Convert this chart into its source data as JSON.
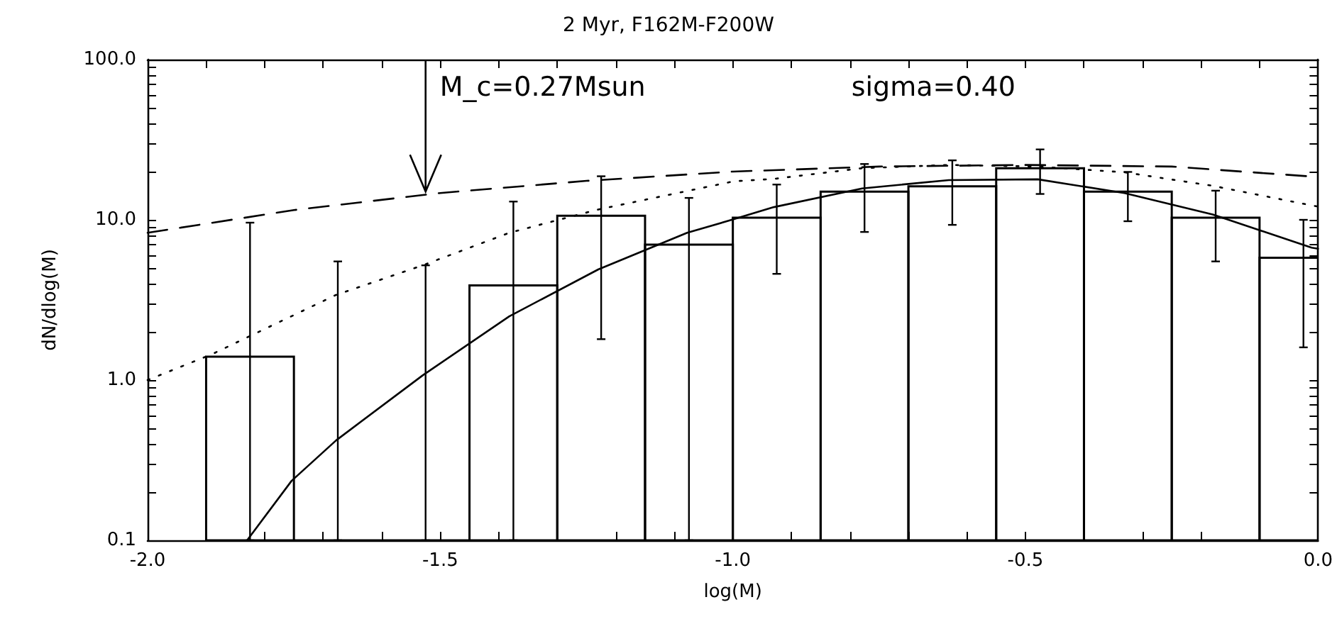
{
  "chart_data": {
    "type": "histogram",
    "title": "2 Myr, F162M-F200W",
    "xlabel": "log(M)",
    "ylabel": "dN/dlog(M)",
    "annotations": [
      {
        "text": "M_c=0.27Msun",
        "x": -1.525,
        "y": 15
      },
      "sigma=0.40"
    ],
    "bins": [
      -1.9,
      -1.75,
      -1.6,
      -1.45,
      -1.3,
      -1.15,
      -1.0,
      -0.85,
      -0.7,
      -0.55,
      -0.4,
      -0.25,
      -0.1,
      0.05
    ],
    "values": [
      1.4,
      0.1,
      0.1,
      3.9,
      10.6,
      7.0,
      10.3,
      15.0,
      16.2,
      21,
      15.0,
      10.3,
      5.8
    ],
    "errors": [
      [
        0.1,
        9.6
      ],
      [
        0.1,
        5.5
      ],
      [
        0.1,
        5.2
      ],
      [
        0.1,
        13
      ],
      [
        1.8,
        18.7
      ],
      [
        0.1,
        13.7
      ],
      [
        4.6,
        16.6
      ],
      [
        8.4,
        22.3
      ],
      [
        9.3,
        23.5
      ],
      [
        14.5,
        27.5
      ],
      [
        9.8,
        19.9
      ],
      [
        5.5,
        15.2
      ],
      [
        1.6,
        10
      ]
    ],
    "color": "#000000",
    "series": [
      {
        "type": "line",
        "color": "#000000",
        "line_style": "solid",
        "x": [
          -1.83,
          -1.754,
          -1.678,
          -1.53,
          -1.382,
          -1.23,
          -1.078,
          -0.998,
          -0.93,
          -0.779,
          -0.631,
          -0.479,
          -0.331,
          -0.18,
          -0.011,
          0.0
        ],
        "values": [
          0.1,
          0.235,
          0.42,
          1.07,
          2.5,
          4.9,
          8.3,
          10.1,
          12.0,
          15.7,
          17.7,
          17.9,
          14.7,
          10.8,
          6.7,
          6.6
        ]
      },
      {
        "type": "line",
        "color": "#000000",
        "line_style": "dotted",
        "x": [
          -2.0,
          -1.89,
          -1.678,
          -1.53,
          -1.382,
          -1.23,
          -0.998,
          -0.93,
          -0.779,
          -0.631,
          -0.479,
          -0.331,
          -0.18,
          -0.011,
          0.0
        ],
        "values": [
          1.0,
          1.45,
          3.4,
          5.2,
          8.3,
          11.6,
          17.4,
          18,
          21,
          22,
          21.5,
          19.8,
          16.3,
          12.3,
          12.1
        ]
      },
      {
        "type": "line",
        "color": "#000000",
        "line_style": "dashed",
        "x": [
          -2.0,
          -1.75,
          -1.5,
          -1.25,
          -1.0,
          -0.75,
          -0.5,
          -0.25,
          0.0
        ],
        "values": [
          8.3,
          11.5,
          14.7,
          17.5,
          20,
          21.5,
          22,
          21.5,
          18.5
        ]
      }
    ],
    "xlim": [
      -2.0,
      0.0
    ],
    "xticks": [
      {
        "value": -2,
        "label": "-2.0"
      },
      {
        "value": -1.9,
        "label": null
      },
      {
        "value": -1.8,
        "label": null
      },
      {
        "value": -1.7,
        "label": null
      },
      {
        "value": -1.6,
        "label": null
      },
      -1.5,
      {
        "value": -1.4,
        "label": null
      },
      {
        "value": -1.3,
        "label": null
      },
      {
        "value": -1.2,
        "label": null
      },
      {
        "value": -1.1,
        "label": null
      },
      {
        "value": -1,
        "label": "-1.0"
      },
      {
        "value": -0.9,
        "label": null
      },
      {
        "value": -0.8,
        "label": null
      },
      {
        "value": -0.7,
        "label": null
      },
      {
        "value": -0.6,
        "label": null
      },
      -0.5,
      {
        "value": -0.4,
        "label": null
      },
      {
        "value": -0.3,
        "label": null
      },
      {
        "value": -0.2,
        "label": null
      },
      {
        "value": -0.1,
        "label": null
      },
      {
        "value": 0,
        "label": "0.0"
      }
    ],
    "ylim": [
      0.1,
      100
    ],
    "log": "y",
    "yticks": [
      0.1,
      {
        "value": 0.2,
        "label": null
      },
      {
        "value": 0.3,
        "label": null
      },
      {
        "value": 0.4,
        "label": null
      },
      {
        "value": 0.5,
        "label": null
      },
      {
        "value": 0.6,
        "label": null
      },
      {
        "value": 0.7,
        "label": null
      },
      {
        "value": 0.8,
        "label": null
      },
      {
        "value": 0.9,
        "label": null
      },
      {
        "value": 1,
        "label": "1.0"
      },
      {
        "value": 2,
        "label": null
      },
      {
        "value": 3,
        "label": null
      },
      {
        "value": 4,
        "label": null
      },
      {
        "value": 5,
        "label": null
      },
      {
        "value": 6,
        "label": null
      },
      {
        "value": 7,
        "label": null
      },
      {
        "value": 8,
        "label": null
      },
      {
        "value": 9,
        "label": null
      },
      {
        "value": 10,
        "label": "10.0"
      },
      {
        "value": 20,
        "label": null
      },
      {
        "value": 30,
        "label": null
      },
      {
        "value": 40,
        "label": null
      },
      {
        "value": 50,
        "label": null
      },
      {
        "value": 60,
        "label": null
      },
      {
        "value": 70,
        "label": null
      },
      {
        "value": 80,
        "label": null
      },
      {
        "value": 90,
        "label": null
      },
      {
        "value": 100,
        "label": "100.0"
      }
    ],
    "grid": false
  }
}
